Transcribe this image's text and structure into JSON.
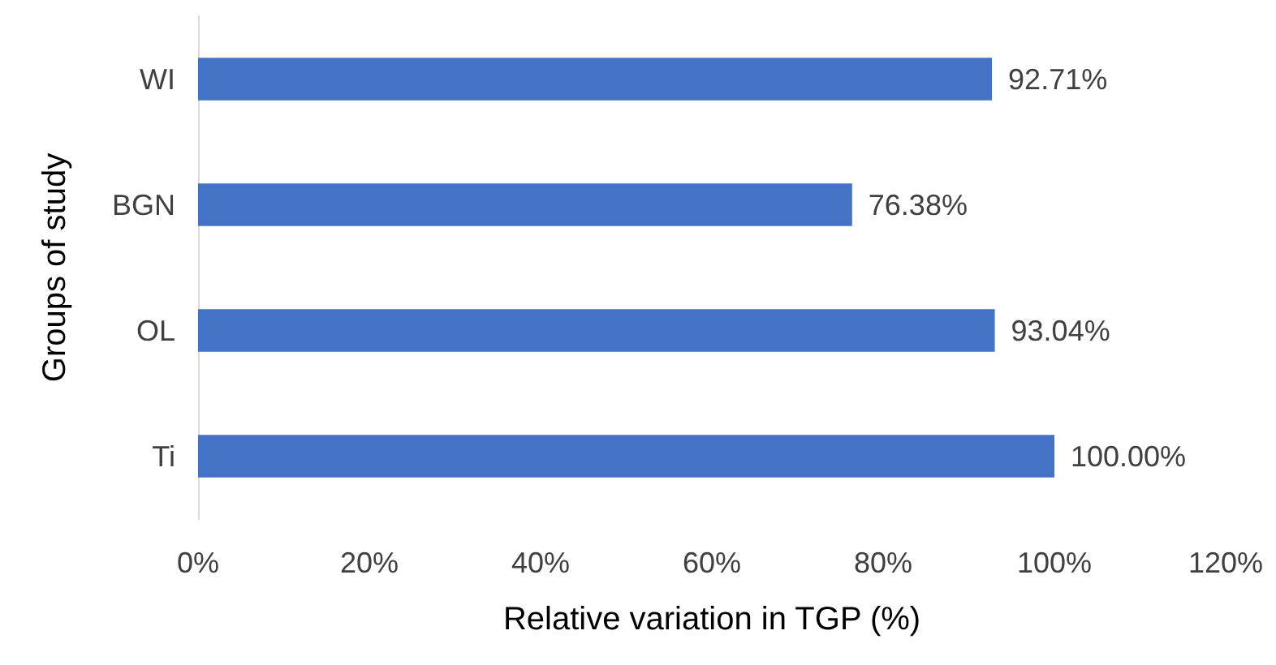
{
  "chart_data": {
    "type": "bar",
    "orientation": "horizontal",
    "xlabel": "Relative variation in TGP (%)",
    "ylabel": "Groups of study",
    "categories": [
      "WI",
      "BGN",
      "OL",
      "Ti"
    ],
    "values": [
      92.71,
      76.38,
      93.04,
      100.0
    ],
    "value_labels": [
      "92.71%",
      "76.38%",
      "93.04%",
      "100.00%"
    ],
    "color": "#4472c4",
    "xlim": [
      0,
      120
    ],
    "xticks": [
      {
        "value": 0,
        "label": "0%"
      },
      {
        "value": 20,
        "label": "20%"
      },
      {
        "value": 40,
        "label": "40%"
      },
      {
        "value": 60,
        "label": "60%"
      },
      {
        "value": 80,
        "label": "80%"
      },
      {
        "value": 100,
        "label": "100%"
      },
      {
        "value": 120,
        "label": "120%"
      }
    ],
    "grid": false
  }
}
